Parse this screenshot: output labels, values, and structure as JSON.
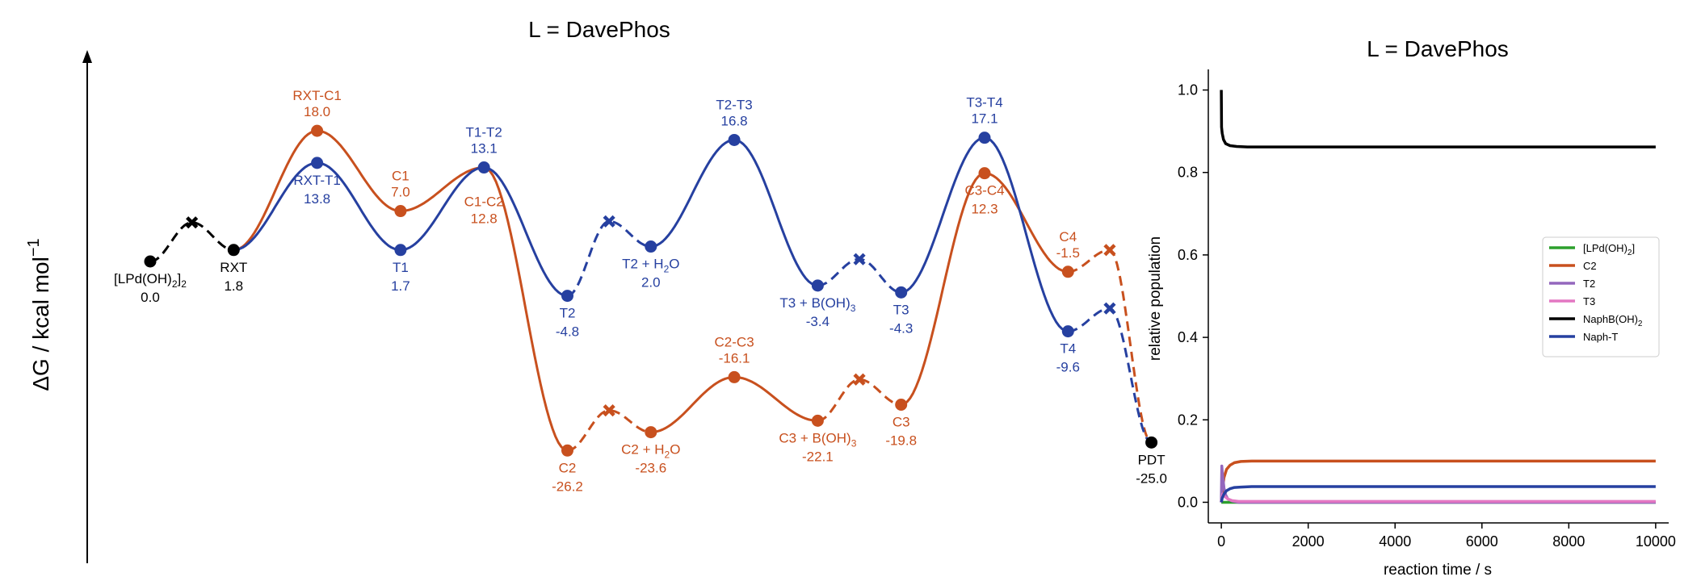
{
  "colors": {
    "c": "#C8501E",
    "t": "#2640A0",
    "k": "#000000",
    "green": "#2CA02C",
    "purple": "#9467BD",
    "pink": "#E377C2"
  },
  "chart_data": [
    {
      "type": "line",
      "title": "L = DavePhos",
      "ylabel": "ΔG / kcal mol",
      "ylabel_sup": "−1",
      "energy_range": [
        -27,
        20
      ],
      "states": [
        {
          "id": "s0",
          "x": 0,
          "G": 0.0,
          "name": "[LPd(OH)",
          "sub": "2",
          "post": "]",
          "sub2": "2",
          "val": "0.0",
          "color": "k",
          "marker": "o",
          "lab": "below"
        },
        {
          "id": "sx0",
          "x": 0.5,
          "G": 3.4,
          "color": "k",
          "marker": "x"
        },
        {
          "id": "sRXT",
          "x": 1,
          "G": 1.0,
          "name": "RXT",
          "val": "1.8",
          "color": "k",
          "marker": "o",
          "lab": "below"
        },
        {
          "id": "sRC1",
          "x": 2,
          "G": 11.4,
          "name": "RXT-C1",
          "val": "18.0",
          "color": "c",
          "marker": "o",
          "lab": "above"
        },
        {
          "id": "sRT1",
          "x": 2,
          "G": 8.6,
          "name": "RXT-T1",
          "val": "13.8",
          "color": "t",
          "marker": "o",
          "lab": "below"
        },
        {
          "id": "sC1",
          "x": 3,
          "G": 4.4,
          "name": "C1",
          "val": "7.0",
          "color": "c",
          "marker": "o",
          "lab": "above"
        },
        {
          "id": "sT1",
          "x": 3,
          "G": 1.0,
          "name": "T1",
          "val": "1.7",
          "color": "t",
          "marker": "o",
          "lab": "below"
        },
        {
          "id": "sTT12",
          "x": 4,
          "G": 8.2,
          "name": "T1-T2",
          "val": "13.1",
          "color": "t",
          "marker": "o",
          "lab": "above"
        },
        {
          "id": "sC2",
          "x": 5,
          "G": -16.5,
          "name": "C2",
          "val": "-26.2",
          "color": "c",
          "marker": "o",
          "lab": "below"
        },
        {
          "id": "sT2",
          "x": 5,
          "G": -3.0,
          "name": "T2",
          "val": "-4.8",
          "color": "t",
          "marker": "o",
          "lab": "below"
        },
        {
          "id": "sxC2",
          "x": 5.5,
          "G": -13.0,
          "color": "c",
          "marker": "x"
        },
        {
          "id": "sxT2",
          "x": 5.5,
          "G": 3.5,
          "color": "t",
          "marker": "x"
        },
        {
          "id": "sC2w",
          "x": 6,
          "G": -14.9,
          "name": "C2 + H",
          "sub": "2",
          "post": "O",
          "val": "-23.6",
          "color": "c",
          "marker": "o",
          "lab": "below"
        },
        {
          "id": "sT2w",
          "x": 6,
          "G": 1.3,
          "name": "T2 + H",
          "sub": "2",
          "post": "O",
          "val": "2.0",
          "color": "t",
          "marker": "o",
          "lab": "below"
        },
        {
          "id": "sC23",
          "x": 7,
          "G": -10.1,
          "name": "C2-C3",
          "val": "-16.1",
          "color": "c",
          "marker": "o",
          "lab": "above"
        },
        {
          "id": "sT23",
          "x": 7,
          "G": 10.6,
          "name": "T2-T3",
          "val": "16.8",
          "color": "t",
          "marker": "o",
          "lab": "above"
        },
        {
          "id": "sC3b",
          "x": 8,
          "G": -13.9,
          "name": "C3 + B(OH)",
          "sub": "3",
          "post": "",
          "val": "-22.1",
          "color": "c",
          "marker": "o",
          "lab": "below"
        },
        {
          "id": "sT3b",
          "x": 8,
          "G": -2.1,
          "name": "T3 + B(OH)",
          "sub": "3",
          "post": "",
          "val": "-3.4",
          "color": "t",
          "marker": "o",
          "lab": "below"
        },
        {
          "id": "sxC3",
          "x": 8.5,
          "G": -10.3,
          "color": "c",
          "marker": "x"
        },
        {
          "id": "sxT3",
          "x": 8.5,
          "G": 0.2,
          "color": "t",
          "marker": "x"
        },
        {
          "id": "sC3",
          "x": 9,
          "G": -12.5,
          "name": "C3",
          "val": "-19.8",
          "color": "c",
          "marker": "o",
          "lab": "below"
        },
        {
          "id": "sT3",
          "x": 9,
          "G": -2.7,
          "name": "T3",
          "val": "-4.3",
          "color": "t",
          "marker": "o",
          "lab": "below"
        },
        {
          "id": "sC34",
          "x": 10,
          "G": 7.7,
          "name": "C3-C4",
          "val": "12.3",
          "color": "c",
          "marker": "o",
          "lab": "below"
        },
        {
          "id": "sT34",
          "x": 10,
          "G": 10.8,
          "name": "T3-T4",
          "val": "17.1",
          "color": "t",
          "marker": "o",
          "lab": "above"
        },
        {
          "id": "sC4",
          "x": 11,
          "G": -0.9,
          "name": "C4",
          "val": "-1.5",
          "color": "c",
          "marker": "o",
          "lab": "above"
        },
        {
          "id": "sT4",
          "x": 11,
          "G": -6.1,
          "name": "T4",
          "val": "-9.6",
          "color": "t",
          "marker": "o",
          "lab": "below"
        },
        {
          "id": "sxC4",
          "x": 11.5,
          "G": 1.0,
          "color": "c",
          "marker": "x"
        },
        {
          "id": "sxT4",
          "x": 11.5,
          "G": -4.1,
          "color": "t",
          "marker": "x"
        },
        {
          "id": "sPDT",
          "x": 12,
          "G": -15.8,
          "name": "PDT",
          "val": "-25.0",
          "color": "k",
          "marker": "o",
          "lab": "below"
        }
      ],
      "paths": [
        {
          "color": "k",
          "style": "dashed",
          "nodes": [
            "s0",
            "sx0",
            "sRXT"
          ]
        },
        {
          "color": "c",
          "style": "solid",
          "nodes": [
            "sRXT",
            "sRC1",
            "sC1",
            "sTT12",
            "sC2"
          ]
        },
        {
          "color": "t",
          "style": "solid",
          "nodes": [
            "sRXT",
            "sRT1",
            "sT1",
            "sTT12",
            "sT2"
          ]
        },
        {
          "color": "c",
          "style": "dashed",
          "nodes": [
            "sC2",
            "sxC2",
            "sC2w"
          ]
        },
        {
          "color": "t",
          "style": "dashed",
          "nodes": [
            "sT2",
            "sxT2",
            "sT2w"
          ]
        },
        {
          "color": "c",
          "style": "solid",
          "nodes": [
            "sC2w",
            "sC23",
            "sC3b"
          ]
        },
        {
          "color": "t",
          "style": "solid",
          "nodes": [
            "sT2w",
            "sT23",
            "sT3b"
          ]
        },
        {
          "color": "c",
          "style": "dashed",
          "nodes": [
            "sC3b",
            "sxC3",
            "sC3"
          ]
        },
        {
          "color": "t",
          "style": "dashed",
          "nodes": [
            "sT3b",
            "sxT3",
            "sT3"
          ]
        },
        {
          "color": "c",
          "style": "solid",
          "nodes": [
            "sC3",
            "sC34",
            "sC4"
          ]
        },
        {
          "color": "t",
          "style": "solid",
          "nodes": [
            "sT3",
            "sT34",
            "sT4"
          ]
        },
        {
          "color": "c",
          "style": "dashed",
          "nodes": [
            "sC4",
            "sxC4",
            "sPDT"
          ]
        },
        {
          "color": "t",
          "style": "dashed",
          "nodes": [
            "sT4",
            "sxT4",
            "sPDT"
          ]
        }
      ],
      "extra_labels": [
        {
          "text": "C1-C2",
          "val": "12.8",
          "x": 4,
          "G": 8.2,
          "color": "c"
        }
      ]
    },
    {
      "type": "line",
      "title": "L = DavePhos",
      "xlabel": "reaction time / s",
      "ylabel": "relative population",
      "xlim": [
        -300,
        10300
      ],
      "ylim": [
        -0.05,
        1.05
      ],
      "xticks": [
        0,
        2000,
        4000,
        6000,
        8000,
        10000
      ],
      "yticks": [
        0.0,
        0.2,
        0.4,
        0.6,
        0.8,
        1.0
      ],
      "ytick_labels": [
        "0.0",
        "0.2",
        "0.4",
        "0.6",
        "0.8",
        "1.0"
      ],
      "series": [
        {
          "name": "[LPd(OH)",
          "sub": "2",
          "post": "]",
          "color": "green",
          "x": [
            0,
            10000
          ],
          "y": [
            0.0,
            0.0
          ]
        },
        {
          "name": "C2",
          "color": "c",
          "x": [
            0,
            25,
            60,
            120,
            200,
            300,
            450,
            700,
            1000,
            10000
          ],
          "y": [
            0,
            0.03,
            0.06,
            0.08,
            0.09,
            0.096,
            0.099,
            0.1,
            0.1,
            0.1
          ]
        },
        {
          "name": "T2",
          "color": "purple",
          "x": [
            0,
            10,
            30,
            60,
            100,
            150,
            250,
            400,
            10000
          ],
          "y": [
            0,
            0.088,
            0.065,
            0.035,
            0.018,
            0.008,
            0.003,
            0.0,
            0.0
          ]
        },
        {
          "name": "T3",
          "color": "pink",
          "x": [
            0,
            30,
            80,
            150,
            250,
            400,
            10000
          ],
          "y": [
            0,
            0.02,
            0.014,
            0.008,
            0.004,
            0.002,
            0.002
          ]
        },
        {
          "name": "NaphB(OH)",
          "sub": "2",
          "post": "",
          "color": "k",
          "x": [
            0,
            5,
            20,
            50,
            100,
            200,
            350,
            600,
            1000,
            10000
          ],
          "y": [
            1.0,
            0.91,
            0.895,
            0.88,
            0.87,
            0.865,
            0.863,
            0.862,
            0.862,
            0.862
          ]
        },
        {
          "name": "Naph-T",
          "color": "t",
          "x": [
            0,
            20,
            60,
            120,
            200,
            300,
            450,
            700,
            10000
          ],
          "y": [
            0,
            0.01,
            0.02,
            0.028,
            0.033,
            0.036,
            0.037,
            0.038,
            0.038
          ]
        }
      ]
    }
  ]
}
